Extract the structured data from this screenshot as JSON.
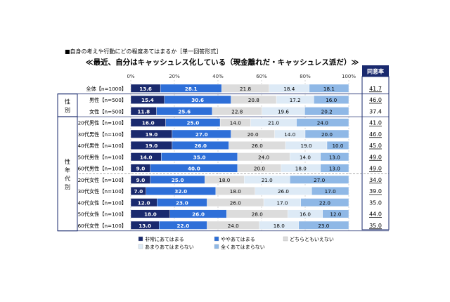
{
  "chart_data": {
    "type": "bar",
    "stacked": true,
    "horizontal": true,
    "question": "■自身の考えや行動にどの程度あてはまるか［単一回答形式］",
    "title": "≪最近、自分はキャッシュレス化している（現金離れだ・キャッシュレス派だ）≫",
    "xlim": [
      0,
      100
    ],
    "xticks": [
      "0%",
      "20%",
      "40%",
      "60%",
      "80%",
      "100%"
    ],
    "agree_header": "同意率",
    "groups": [
      {
        "label": "",
        "rows": [
          0
        ]
      },
      {
        "label": "性別",
        "rows": [
          1,
          2
        ]
      },
      {
        "label": "性年代別",
        "rows": [
          3,
          4,
          5,
          6,
          7,
          8,
          9,
          10,
          11,
          12
        ]
      }
    ],
    "categories": [
      "全体【n=1000】",
      "男性【n=500】",
      "女性【n=500】",
      "20代男性【n=100】",
      "30代男性【n=100】",
      "40代男性【n=100】",
      "50代男性【n=100】",
      "60代男性【n=100】",
      "20代女性【n=100】",
      "30代女性【n=100】",
      "40代女性【n=100】",
      "50代女性【n=100】",
      "60代女性【n=100】"
    ],
    "series": [
      {
        "name": "非常にあてはまる",
        "color": "#1a2a6e",
        "label_color": "#ffffff",
        "values": [
          13.6,
          15.4,
          11.8,
          16.0,
          19.0,
          19.0,
          14.0,
          9.0,
          9.0,
          7.0,
          12.0,
          18.0,
          13.0
        ],
        "labels": [
          "13.6",
          "15.4",
          "11.8",
          "16.0",
          "19.0",
          "19.0",
          "14.0",
          "9.0",
          "9.0",
          "7.0",
          "12.0",
          "18.0",
          "13.0"
        ]
      },
      {
        "name": "ややあてはまる",
        "color": "#2e6fd8",
        "label_color": "#ffffff",
        "values": [
          28.1,
          30.6,
          25.6,
          25.0,
          27.0,
          26.0,
          35.0,
          40.0,
          25.0,
          32.0,
          23.0,
          26.0,
          22.0
        ],
        "labels": [
          "28.1",
          "30.6",
          "25.6",
          "25.0",
          "27.0",
          "26.0",
          "35.0",
          "40.0",
          "25.0",
          "32.0",
          "23.0",
          "26.0",
          "22.0"
        ]
      },
      {
        "name": "どちらともいえない",
        "color": "#dcdcdc",
        "label_color": "#000000",
        "values": [
          21.8,
          20.8,
          22.8,
          14.0,
          20.0,
          26.0,
          24.0,
          20.0,
          18.0,
          18.0,
          26.0,
          28.0,
          24.0
        ],
        "labels": [
          "21.8",
          "20.8",
          "22.8",
          "14.0",
          "20.0",
          "26.0",
          "24.0",
          "20.0",
          "18.0",
          "18.0",
          "26.0",
          "28.0",
          "24.0"
        ]
      },
      {
        "name": "あまりあてはまらない",
        "color": "#ddeaf6",
        "label_color": "#000000",
        "values": [
          18.4,
          17.2,
          19.6,
          21.0,
          14.0,
          19.0,
          14.0,
          18.0,
          21.0,
          26.0,
          17.0,
          16.0,
          18.0
        ],
        "labels": [
          "18.4",
          "17.2",
          "19.6",
          "21.0",
          "14.0",
          "19.0",
          "14.0",
          "18.0",
          "21.0",
          "26.0",
          "17.0",
          "16.0",
          "18.0"
        ]
      },
      {
        "name": "全くあてはまらない",
        "color": "#8fb8e6",
        "label_color": "#000000",
        "values": [
          18.1,
          16.0,
          20.2,
          24.0,
          20.0,
          10.0,
          13.0,
          13.0,
          27.0,
          17.0,
          22.0,
          12.0,
          23.0
        ],
        "labels": [
          "18.1",
          "16.0",
          "20.2",
          "24.0",
          "20.0",
          "10.0",
          "13.0",
          "13.0",
          "27.0",
          "17.0",
          "22.0",
          "12.0",
          "23.0"
        ]
      }
    ],
    "agree_rate": [
      "41.7",
      "46.0",
      "37.4",
      "41.0",
      "46.0",
      "45.0",
      "49.0",
      "49.0",
      "34.0",
      "39.0",
      "35.0",
      "44.0",
      "35.0"
    ],
    "agree_underlined": [
      true,
      true,
      false,
      true,
      true,
      true,
      true,
      true,
      true,
      true,
      false,
      true,
      true
    ],
    "legend_position": "bottom",
    "grid": true
  }
}
